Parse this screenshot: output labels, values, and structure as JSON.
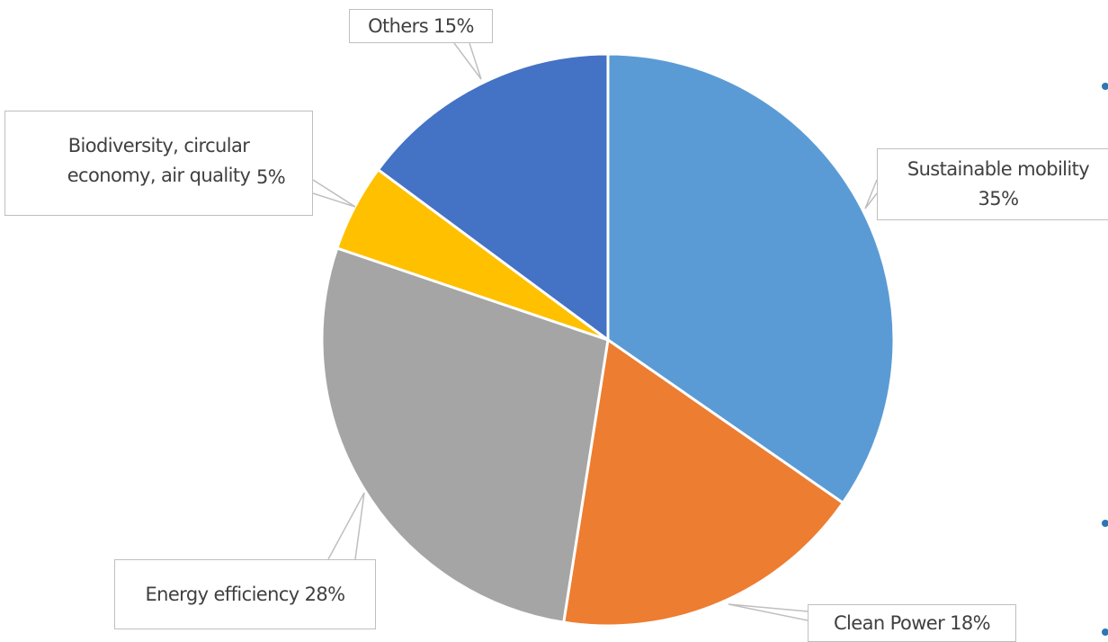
{
  "chart_data": {
    "type": "pie",
    "categories": [
      "Sustainable mobility",
      "Clean Power",
      "Energy efficiency",
      "Biodiversity, circular economy, air quality",
      "Others"
    ],
    "values": [
      35,
      18,
      28,
      5,
      15
    ],
    "value_labels": [
      "35%",
      "18%",
      "28%",
      "5%",
      "15%"
    ],
    "colors": [
      "#5b9bd5",
      "#ed7d31",
      "#a5a5a5",
      "#ffc000",
      "#4472c4"
    ]
  }
}
